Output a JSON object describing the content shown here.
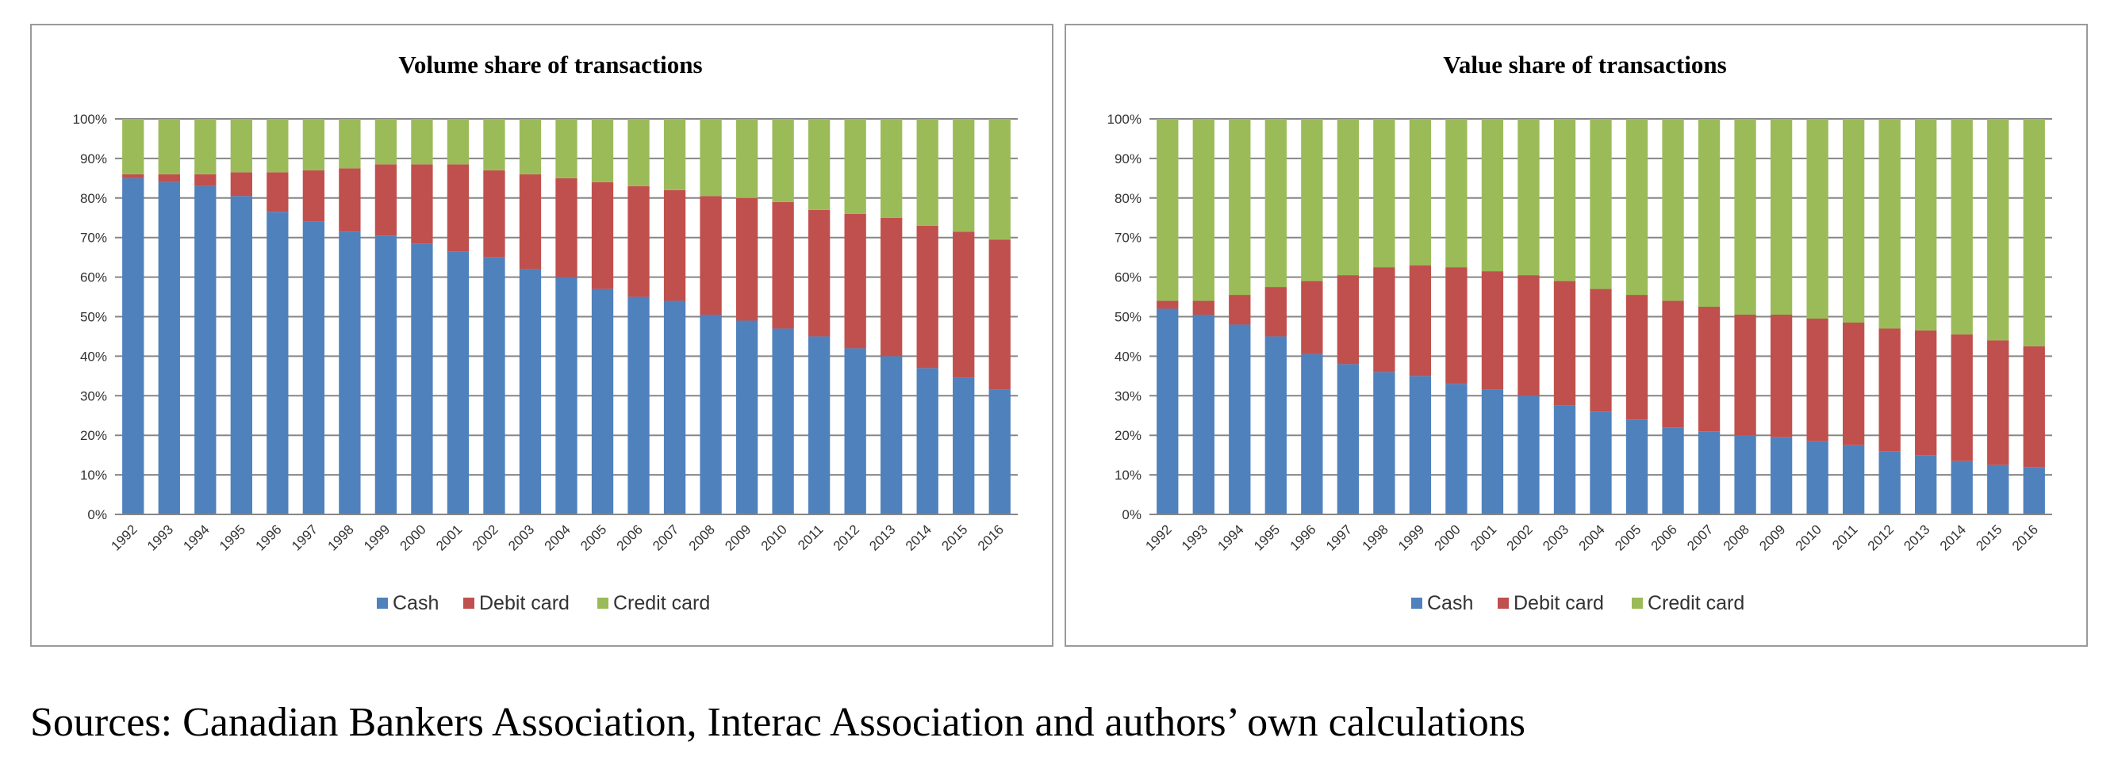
{
  "colors": {
    "cash": "#4f81bd",
    "debit": "#c0504d",
    "credit": "#9bbb59",
    "grid": "#868686",
    "axis": "#868686"
  },
  "source_note": "Sources: Canadian Bankers Association, Interac Association and authors’ own calculations",
  "chart_data": [
    {
      "type": "bar",
      "stacked": true,
      "title": "Volume share of transactions",
      "xlabel": "",
      "ylabel": "",
      "ylim": [
        0,
        100
      ],
      "yticks": [
        "0%",
        "10%",
        "20%",
        "30%",
        "40%",
        "50%",
        "60%",
        "70%",
        "80%",
        "90%",
        "100%"
      ],
      "grid": true,
      "legend_position": "bottom",
      "categories": [
        "1992",
        "1993",
        "1994",
        "1995",
        "1996",
        "1997",
        "1998",
        "1999",
        "2000",
        "2001",
        "2002",
        "2003",
        "2004",
        "2005",
        "2006",
        "2007",
        "2008",
        "2009",
        "2010",
        "2011",
        "2012",
        "2013",
        "2014",
        "2015",
        "2016"
      ],
      "series": [
        {
          "name": "Cash",
          "values": [
            85,
            84,
            83,
            80.5,
            76.5,
            74,
            71.5,
            70.5,
            68.5,
            66.5,
            65,
            62,
            60,
            57,
            55,
            54,
            50.5,
            49,
            47,
            45,
            42,
            40,
            37,
            34.5,
            31.5
          ]
        },
        {
          "name": "Debit card",
          "values": [
            1,
            2,
            3,
            6,
            10,
            13,
            16,
            18,
            20,
            22,
            22,
            24,
            25,
            27,
            28,
            28,
            30,
            31,
            32,
            32,
            34,
            35,
            36,
            37,
            38
          ]
        },
        {
          "name": "Credit card",
          "values": [
            14,
            14,
            14,
            13.5,
            13.5,
            13,
            12.5,
            11.5,
            11.5,
            11.5,
            13,
            14,
            15,
            16,
            17,
            18,
            19.5,
            20,
            21,
            23,
            24,
            25,
            27,
            28.5,
            30.5
          ]
        }
      ]
    },
    {
      "type": "bar",
      "stacked": true,
      "title": "Value share of transactions",
      "xlabel": "",
      "ylabel": "",
      "ylim": [
        0,
        100
      ],
      "yticks": [
        "0%",
        "10%",
        "20%",
        "30%",
        "40%",
        "50%",
        "60%",
        "70%",
        "80%",
        "90%",
        "100%"
      ],
      "grid": true,
      "legend_position": "bottom",
      "categories": [
        "1992",
        "1993",
        "1994",
        "1995",
        "1996",
        "1997",
        "1998",
        "1999",
        "2000",
        "2001",
        "2002",
        "2003",
        "2004",
        "2005",
        "2006",
        "2007",
        "2008",
        "2009",
        "2010",
        "2011",
        "2012",
        "2013",
        "2014",
        "2015",
        "2016"
      ],
      "series": [
        {
          "name": "Cash",
          "values": [
            52,
            50.5,
            48,
            45,
            40.5,
            38,
            36,
            35,
            33,
            31.5,
            30,
            27.5,
            26,
            24,
            22,
            21,
            20,
            19.5,
            18.5,
            17.5,
            16,
            15,
            13.5,
            12.5,
            12
          ]
        },
        {
          "name": "Debit card",
          "values": [
            2,
            3.5,
            7.5,
            12.5,
            18.5,
            22.5,
            26.5,
            28,
            29.5,
            30,
            30.5,
            31.5,
            31,
            31.5,
            32,
            31.5,
            30.5,
            31,
            31,
            31,
            31,
            31.5,
            32,
            31.5,
            30.5
          ]
        },
        {
          "name": "Credit card",
          "values": [
            46,
            46,
            44.5,
            42.5,
            41,
            39.5,
            37.5,
            37,
            37.5,
            38.5,
            39.5,
            41,
            43,
            44.5,
            46,
            47.5,
            49.5,
            49.5,
            50.5,
            51.5,
            53,
            53.5,
            54.5,
            56,
            57.5
          ]
        }
      ]
    }
  ]
}
